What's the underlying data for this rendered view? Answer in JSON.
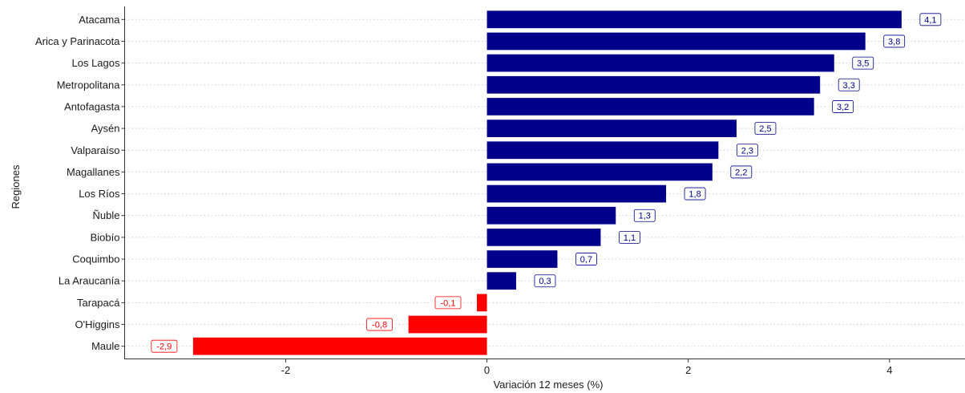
{
  "chart_data": {
    "type": "bar",
    "orientation": "horizontal",
    "xlabel": "Variación 12 meses (%)",
    "ylabel": "Regiones",
    "xlim": [
      -3.6,
      4.75
    ],
    "xticks": [
      -2,
      0,
      2,
      4
    ],
    "xtick_labels": [
      "-2",
      "0",
      "2",
      "4"
    ],
    "grid": "horizontal dotted",
    "positive_color": "#00008b",
    "negative_color": "#ff0000",
    "categories": [
      "Atacama",
      "Arica y Parinacota",
      "Los Lagos",
      "Metropolitana",
      "Antofagasta",
      "Aysén",
      "Valparaíso",
      "Magallanes",
      "Los Ríos",
      "Ñuble",
      "Biobío",
      "Coquimbo",
      "La Araucanía",
      "Tarapacá",
      "O'Higgins",
      "Maule"
    ],
    "values": [
      4.12,
      3.76,
      3.45,
      3.31,
      3.25,
      2.48,
      2.3,
      2.24,
      1.78,
      1.28,
      1.13,
      0.7,
      0.29,
      -0.1,
      -0.78,
      -2.92
    ],
    "labels": [
      "4,1",
      "3,8",
      "3,5",
      "3,3",
      "3,2",
      "2,5",
      "2,3",
      "2,2",
      "1,8",
      "1,3",
      "1,1",
      "0,7",
      "0,3",
      "-0,1",
      "-0,8",
      "-2,9"
    ]
  }
}
